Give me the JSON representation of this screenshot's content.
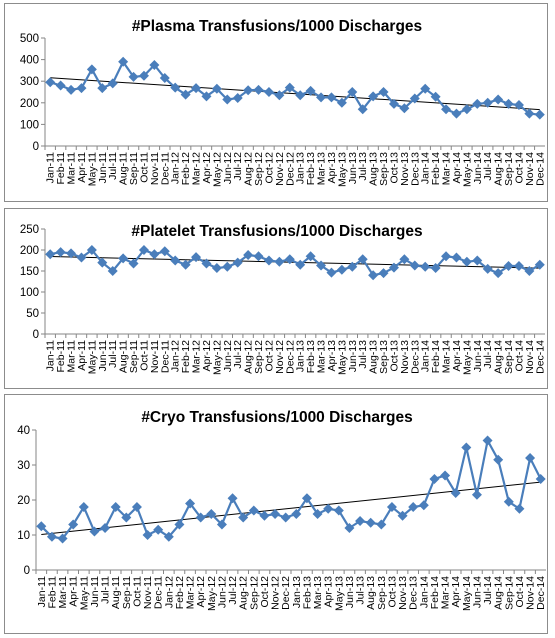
{
  "chart_data": [
    {
      "type": "line",
      "title": "#Plasma Transfusions/1000 Discharges",
      "categories": [
        "Jan-11",
        "Feb-11",
        "Mar-11",
        "Apr-11",
        "May-11",
        "Jun-11",
        "Jul-11",
        "Aug-11",
        "Sep-11",
        "Oct-11",
        "Nov-11",
        "Dec-11",
        "Jan-12",
        "Feb-12",
        "Mar-12",
        "Apr-12",
        "May-12",
        "Jun-12",
        "Jul-12",
        "Aug-12",
        "Sep-12",
        "Oct-12",
        "Nov-12",
        "Dec-12",
        "Jan-13",
        "Feb-13",
        "Mar-13",
        "Apr-13",
        "May-13",
        "Jun-13",
        "Jul-13",
        "Aug-13",
        "Sep-13",
        "Oct-13",
        "Nov-13",
        "Dec-13",
        "Jan-14",
        "Feb-14",
        "Mar-14",
        "Apr-14",
        "May-14",
        "Jun-14",
        "Jul-14",
        "Aug-14",
        "Sep-14",
        "Oct-14",
        "Nov-14",
        "Dec-14"
      ],
      "values": [
        295,
        280,
        260,
        268,
        355,
        268,
        290,
        390,
        320,
        325,
        375,
        315,
        270,
        238,
        268,
        230,
        265,
        215,
        222,
        258,
        260,
        250,
        235,
        270,
        235,
        255,
        225,
        225,
        200,
        250,
        170,
        230,
        250,
        195,
        175,
        220,
        265,
        228,
        170,
        150,
        170,
        195,
        200,
        215,
        195,
        190,
        150,
        145
      ],
      "trendline": {
        "type": "linear"
      },
      "ylim": [
        0,
        500
      ],
      "yticks": [
        0,
        100,
        200,
        300,
        400,
        500
      ],
      "xlabel": "",
      "ylabel": "",
      "legend": "none",
      "grid": false,
      "color": "#4a7ebb"
    },
    {
      "type": "line",
      "title": "#Platelet Transfusions/1000 Discharges",
      "categories": [
        "Jan-11",
        "Feb-11",
        "Mar-11",
        "Apr-11",
        "May-11",
        "Jun-11",
        "Jul-11",
        "Aug-11",
        "Sep-11",
        "Oct-11",
        "Nov-11",
        "Dec-11",
        "Jan-12",
        "Feb-12",
        "Mar-12",
        "Apr-12",
        "May-12",
        "Jun-12",
        "Jul-12",
        "Aug-12",
        "Sep-12",
        "Oct-12",
        "Nov-12",
        "Dec-12",
        "Jan-13",
        "Feb-13",
        "Mar-13",
        "Apr-13",
        "May-13",
        "Jun-13",
        "Jul-13",
        "Aug-13",
        "Sep-13",
        "Oct-13",
        "Nov-13",
        "Dec-13",
        "Jan-14",
        "Feb-14",
        "Mar-14",
        "Apr-14",
        "May-14",
        "Jun-14",
        "Jul-14",
        "Aug-14",
        "Sep-14",
        "Oct-14",
        "Nov-14",
        "Dec-14"
      ],
      "values": [
        190,
        195,
        192,
        182,
        200,
        170,
        150,
        180,
        168,
        200,
        190,
        197,
        175,
        165,
        183,
        168,
        157,
        160,
        170,
        188,
        185,
        175,
        172,
        178,
        165,
        185,
        163,
        146,
        153,
        160,
        178,
        140,
        145,
        158,
        178,
        163,
        160,
        157,
        185,
        182,
        172,
        175,
        155,
        145,
        162,
        162,
        150,
        165
      ],
      "trendline": {
        "type": "linear"
      },
      "ylim": [
        0,
        250
      ],
      "yticks": [
        0,
        50,
        100,
        150,
        200,
        250
      ],
      "xlabel": "",
      "ylabel": "",
      "legend": "none",
      "grid": false,
      "color": "#4a7ebb"
    },
    {
      "type": "line",
      "title": "#Cryo Transfusions/1000 Discharges",
      "categories": [
        "Jan-11",
        "Feb-11",
        "Mar-11",
        "Apr-11",
        "May-11",
        "Jun-11",
        "Jul-11",
        "Aug-11",
        "Sep-11",
        "Oct-11",
        "Nov-11",
        "Dec-11",
        "Jan-12",
        "Feb-12",
        "Mar-12",
        "Apr-12",
        "May-12",
        "Jun-12",
        "Jul-12",
        "Aug-12",
        "Sep-12",
        "Oct-12",
        "Nov-12",
        "Dec-12",
        "Jan-13",
        "Feb-13",
        "Mar-13",
        "Apr-13",
        "May-13",
        "Jun-13",
        "Jul-13",
        "Aug-13",
        "Sep-13",
        "Oct-13",
        "Nov-13",
        "Dec-13",
        "Jan-14",
        "Feb-14",
        "Mar-14",
        "Apr-14",
        "May-14",
        "Jun-14",
        "Jul-14",
        "Aug-14",
        "Sep-14",
        "Oct-14",
        "Nov-14",
        "Dec-14"
      ],
      "values": [
        12.5,
        9.5,
        9,
        13,
        18,
        11,
        12,
        18,
        15,
        18,
        10,
        11.5,
        9.5,
        13,
        19,
        15,
        16,
        13,
        20.5,
        15,
        17,
        15.5,
        16,
        15,
        16,
        20.5,
        16,
        17.5,
        17,
        12,
        14,
        13.5,
        13,
        18,
        15.5,
        18,
        18.5,
        26,
        27,
        22,
        35,
        21.5,
        37,
        31.5,
        19.5,
        17.5,
        32,
        26
      ],
      "trendline": {
        "type": "linear"
      },
      "ylim": [
        0,
        40
      ],
      "yticks": [
        0,
        10,
        20,
        30,
        40
      ],
      "xlabel": "",
      "ylabel": "",
      "legend": "none",
      "grid": false,
      "color": "#4a7ebb"
    }
  ]
}
